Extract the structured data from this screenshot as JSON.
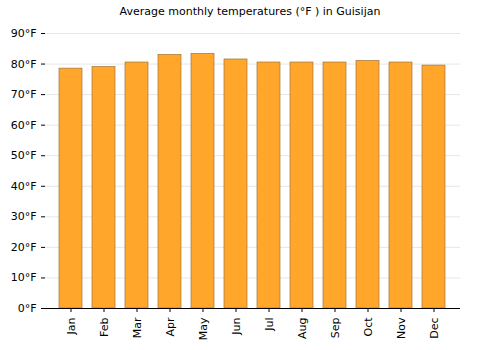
{
  "chart_data": {
    "type": "bar",
    "title": "Average monthly temperatures (°F ) in Guisijan",
    "categories": [
      "Jan",
      "Feb",
      "Mar",
      "Apr",
      "May",
      "Jun",
      "Jul",
      "Aug",
      "Sep",
      "Oct",
      "Nov",
      "Dec"
    ],
    "values": [
      78.5,
      79,
      80.5,
      83,
      83.3,
      81.5,
      80.5,
      80.5,
      80.5,
      81,
      80.5,
      79.5
    ],
    "color": "#ffa62b",
    "ylim": [
      0,
      90
    ],
    "yticks": [
      {
        "value": 0,
        "label": "0°F"
      },
      {
        "value": 10,
        "label": "10°F"
      },
      {
        "value": 20,
        "label": "20°F"
      },
      {
        "value": 30,
        "label": "30°F"
      },
      {
        "value": 40,
        "label": "40°F"
      },
      {
        "value": 50,
        "label": "50°F"
      },
      {
        "value": 60,
        "label": "60°F"
      },
      {
        "value": 70,
        "label": "70°F"
      },
      {
        "value": 80,
        "label": "80°F"
      },
      {
        "value": 90,
        "label": "90°F"
      }
    ],
    "grid": true
  }
}
